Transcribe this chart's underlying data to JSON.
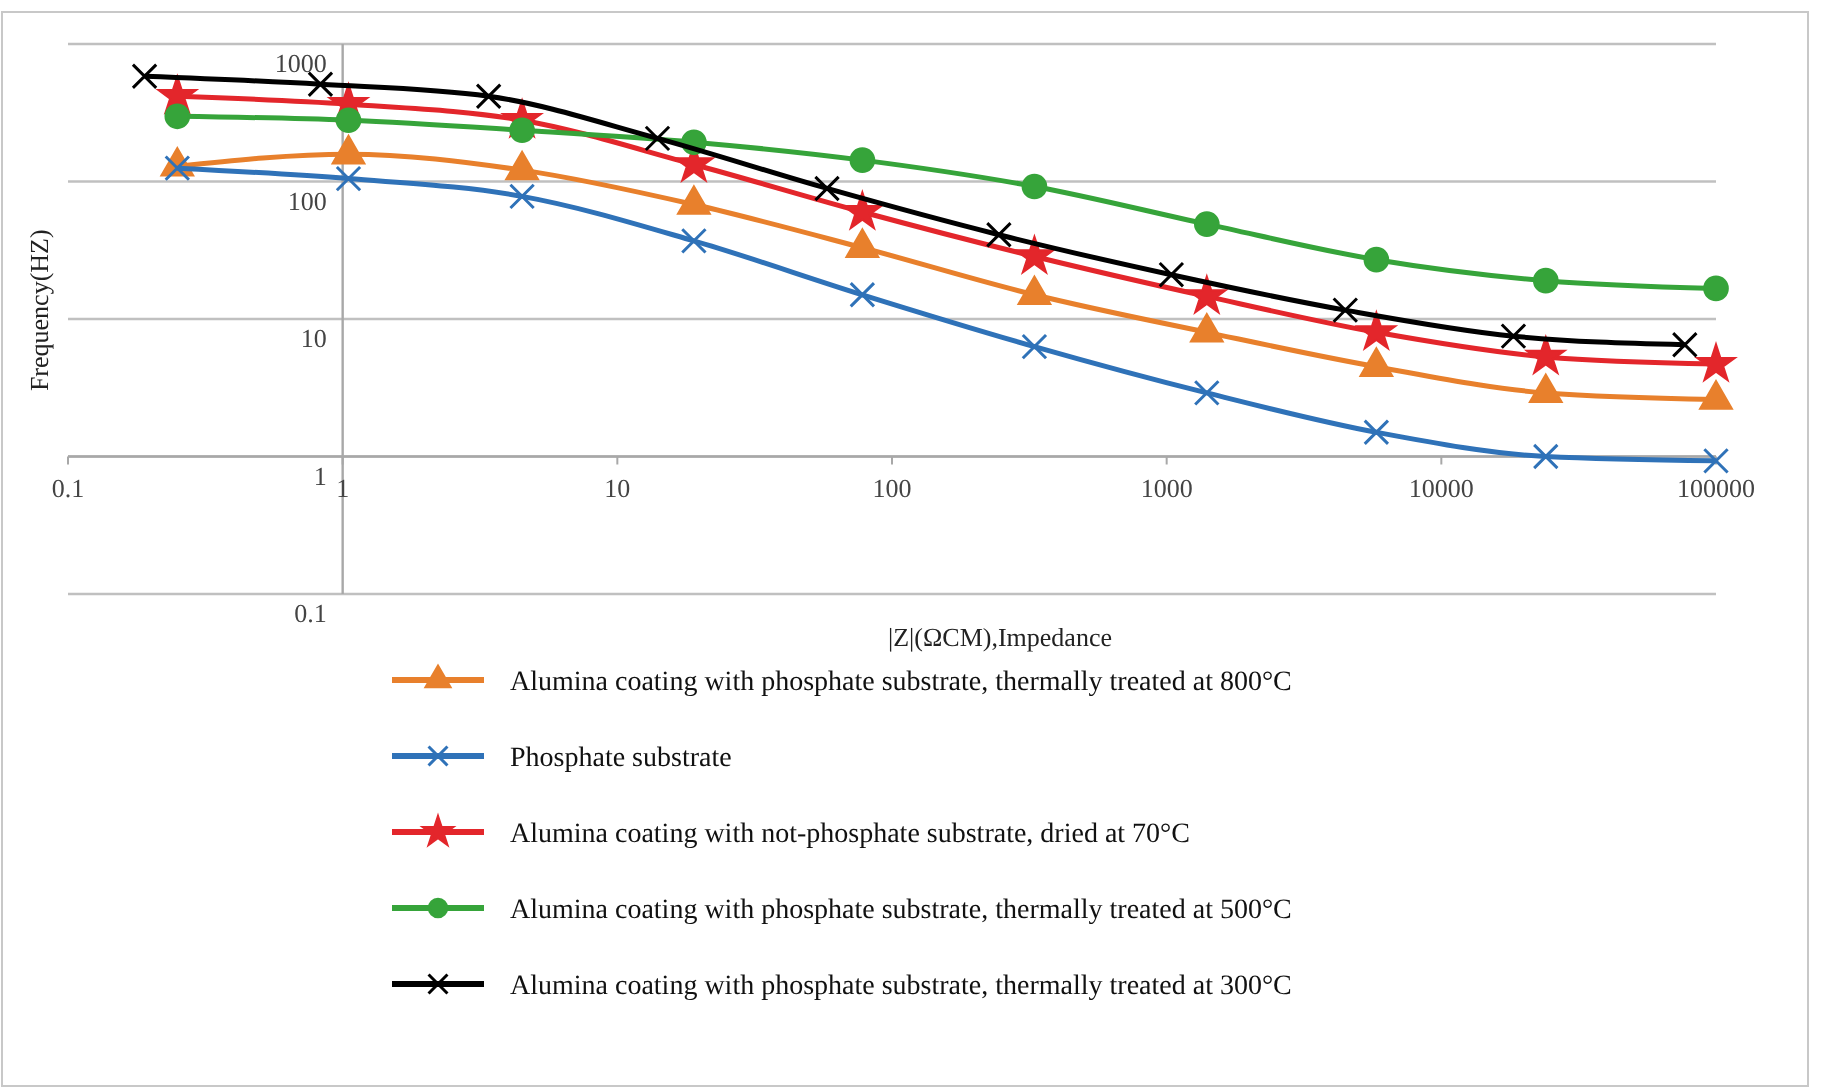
{
  "chart_data": {
    "type": "line",
    "xlabel": "|Z|(ΩCM),Impedance",
    "ylabel": "Frequency(HZ)",
    "log": "xy",
    "xlim": [
      0.1,
      100000
    ],
    "xticks": [
      0.1,
      1,
      10,
      100,
      1000,
      10000,
      100000
    ],
    "ylim": [
      0.1,
      1000
    ],
    "yticks": [
      0.1,
      1,
      10,
      100,
      1000
    ],
    "grid": "y",
    "legend": "bottom",
    "series": [
      {
        "name": "Alumina coating with phosphate substrate, thermally treated at 800°C",
        "color": "#e8802c",
        "marker": "triangle",
        "x": [
          0.25,
          1.05,
          4.5,
          19,
          78,
          330,
          1400,
          5800,
          24000,
          100000
        ],
        "values": [
          129,
          158,
          121,
          68,
          33,
          15,
          8,
          4.5,
          2.9,
          2.6
        ]
      },
      {
        "name": "Phosphate substrate",
        "color": "#2f72b8",
        "marker": "cross",
        "x": [
          0.25,
          1.05,
          4.5,
          19,
          78,
          330,
          1400,
          5800,
          24000,
          100000
        ],
        "values": [
          125,
          105,
          78,
          37,
          15,
          6.3,
          2.9,
          1.5,
          1,
          0.93
        ]
      },
      {
        "name": "Alumina coating with not-phosphate substrate, dried at 70°C",
        "color": "#e3262b",
        "marker": "star",
        "x": [
          0.25,
          1.05,
          4.5,
          19,
          78,
          330,
          1400,
          5800,
          24000,
          100000
        ],
        "values": [
          417,
          365,
          279,
          133,
          60,
          28.5,
          14.6,
          8,
          5.3,
          4.7
        ]
      },
      {
        "name": "Alumina coating with phosphate substrate, thermally treated at 500°C",
        "color": "#36a43a",
        "marker": "circle",
        "x": [
          0.25,
          1.05,
          4.5,
          19,
          78,
          330,
          1400,
          5800,
          24000,
          100000
        ],
        "values": [
          298,
          279,
          236,
          193,
          143,
          92,
          49,
          27,
          19,
          16.7
        ]
      },
      {
        "name": "Alumina coating with phosphate substrate, thermally treated at 300°C",
        "color": "#000000",
        "marker": "cross",
        "x": [
          0.19,
          0.83,
          3.4,
          14,
          58,
          245,
          1040,
          4470,
          18300,
          77000
        ],
        "values": [
          583,
          510,
          417,
          206,
          89,
          41,
          21,
          11.6,
          7.5,
          6.5
        ]
      }
    ]
  }
}
